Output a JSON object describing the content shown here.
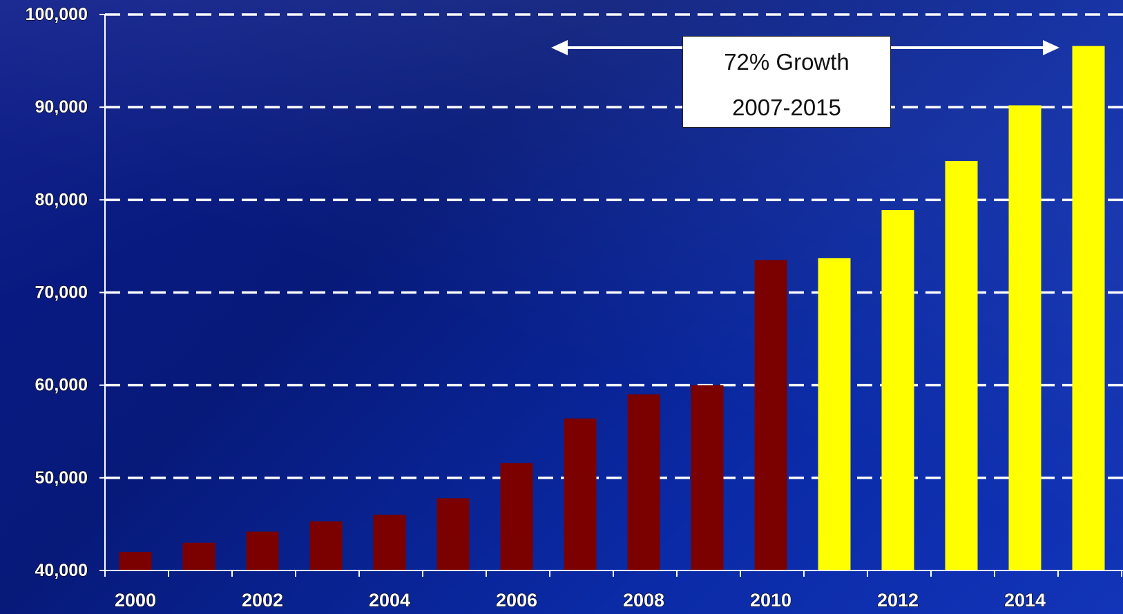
{
  "chart_data": {
    "type": "bar",
    "categories": [
      "2000",
      "2001",
      "2002",
      "2003",
      "2004",
      "2005",
      "2006",
      "2007",
      "2008",
      "2009",
      "2010",
      "2011",
      "2012",
      "2013",
      "2014",
      "2015"
    ],
    "tick_labels": [
      "2000",
      "2002",
      "2004",
      "2006",
      "2008",
      "2010",
      "2012",
      "2014"
    ],
    "series": [
      {
        "values": [
          42000,
          43000,
          44200,
          45300,
          46000,
          47800,
          51600,
          56400,
          59000,
          60000,
          73500,
          null,
          null,
          null,
          null,
          null
        ],
        "color": "#7b0000"
      },
      {
        "values": [
          null,
          null,
          null,
          null,
          null,
          null,
          null,
          null,
          null,
          null,
          null,
          73700,
          78900,
          84200,
          90200,
          96600
        ],
        "color": "#ffff00"
      }
    ],
    "ylim": [
      40000,
      100000
    ],
    "yticks": [
      "40,000",
      "50,000",
      "60,000",
      "70,000",
      "80,000",
      "90,000",
      "100,000"
    ],
    "grid": true,
    "gridline_color": "#ffffff",
    "annotation": {
      "line1": "72% Growth",
      "line2": "2007-2015",
      "span_from": "2007",
      "span_to": "2015"
    },
    "xlabel": "",
    "ylabel": "",
    "title": ""
  }
}
